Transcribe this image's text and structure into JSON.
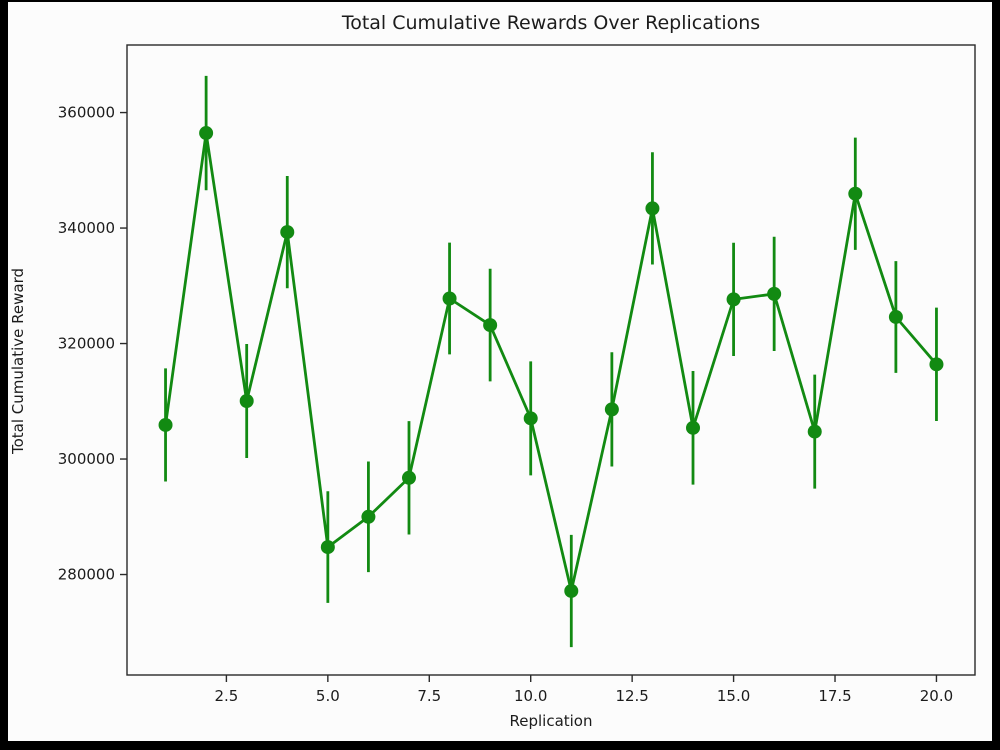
{
  "figure": {
    "background": "#fcfcfc",
    "outer_background": "#000000",
    "text_color": "#1c1c1c",
    "spine_color": "#2a2a2a"
  },
  "chart_data": {
    "type": "line",
    "title": "Total Cumulative Rewards Over Replications",
    "xlabel": "Replication",
    "ylabel": "Total Cumulative Reward",
    "line_color": "#128a12",
    "marker": "o",
    "error_bars": true,
    "legend": "none",
    "grid": false,
    "xlim": [
      0.05,
      20.95
    ],
    "ylim": [
      262600,
      371700
    ],
    "x_ticks": [
      {
        "value": 2.5,
        "label": "2.5"
      },
      {
        "value": 5.0,
        "label": "5.0"
      },
      {
        "value": 7.5,
        "label": "7.5"
      },
      {
        "value": 10.0,
        "label": "10.0"
      },
      {
        "value": 12.5,
        "label": "12.5"
      },
      {
        "value": 15.0,
        "label": "15.0"
      },
      {
        "value": 17.5,
        "label": "17.5"
      },
      {
        "value": 20.0,
        "label": "20.0"
      }
    ],
    "y_ticks": [
      {
        "value": 280000,
        "label": "280000"
      },
      {
        "value": 300000,
        "label": "300000"
      },
      {
        "value": 320000,
        "label": "320000"
      },
      {
        "value": 340000,
        "label": "340000"
      },
      {
        "value": 360000,
        "label": "360000"
      }
    ],
    "x": [
      1,
      2,
      3,
      4,
      5,
      6,
      7,
      8,
      9,
      10,
      11,
      12,
      13,
      14,
      15,
      16,
      17,
      18,
      19,
      20
    ],
    "y": [
      305900,
      356450,
      310050,
      339300,
      284750,
      290000,
      296750,
      327800,
      323200,
      307050,
      277150,
      308600,
      343400,
      305400,
      327650,
      328600,
      304750,
      345950,
      324600,
      316400
    ],
    "yerr": [
      9800,
      9900,
      9870,
      9720,
      9670,
      9580,
      9810,
      9670,
      9750,
      9870,
      9720,
      9890,
      9720,
      9840,
      9810,
      9900,
      9870,
      9720,
      9670,
      9810
    ]
  }
}
